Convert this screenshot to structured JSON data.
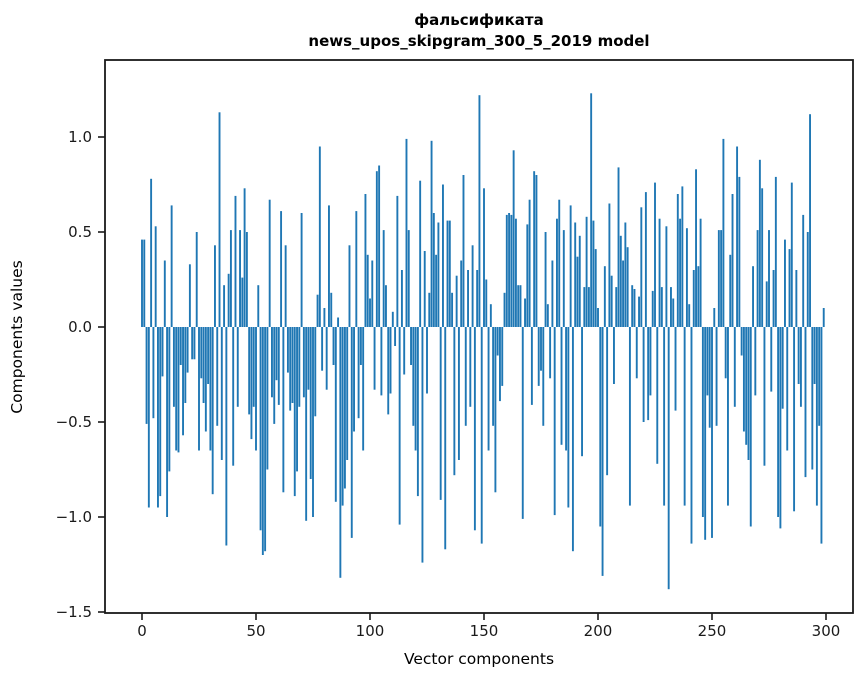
{
  "figure": {
    "title_line1": "фальсификата",
    "title_line2": "news_upos_skipgram_300_5_2019 model",
    "xlabel": "Vector components",
    "ylabel": "Components values"
  },
  "chart_data": {
    "type": "bar",
    "title": "фальсификата news_upos_skipgram_300_5_2019 model",
    "xlabel": "Vector components",
    "ylabel": "Components values",
    "bar_color": "#1f77b4",
    "spine_color": "#1a1a1a",
    "xlim": [
      -15,
      315
    ],
    "ylim": [
      -1.5,
      1.405
    ],
    "grid": false,
    "legend": null,
    "x_ticks": [
      {
        "label": "0",
        "value": 0
      },
      {
        "label": "50",
        "value": 50
      },
      {
        "label": "100",
        "value": 100
      },
      {
        "label": "150",
        "value": 150
      },
      {
        "label": "200",
        "value": 200
      },
      {
        "label": "250",
        "value": 250
      },
      {
        "label": "300",
        "value": 300
      }
    ],
    "y_ticks": [
      {
        "label": "1.0",
        "value": 1.0
      },
      {
        "label": "0.5",
        "value": 0.5
      },
      {
        "label": "0.0",
        "value": 0.0
      },
      {
        "label": "−0.5",
        "value": -0.5
      },
      {
        "label": "−1.0",
        "value": -1.0
      },
      {
        "label": "−1.5",
        "value": -1.5
      }
    ],
    "x": "0..299 (vector component index)",
    "values": [
      0.46,
      0.46,
      -0.51,
      -0.95,
      0.78,
      -0.48,
      0.53,
      -0.95,
      -0.89,
      -0.26,
      0.35,
      -1.0,
      -0.76,
      0.64,
      -0.42,
      -0.65,
      -0.66,
      -0.2,
      -0.57,
      -0.4,
      -0.24,
      0.33,
      -0.17,
      -0.17,
      0.5,
      -0.65,
      -0.27,
      -0.4,
      -0.55,
      -0.3,
      -0.65,
      -0.88,
      0.43,
      -0.52,
      1.13,
      -0.7,
      0.22,
      -1.15,
      0.28,
      0.51,
      -0.73,
      0.69,
      -0.42,
      0.51,
      0.26,
      0.73,
      0.5,
      -0.46,
      -0.59,
      -0.42,
      -0.65,
      0.22,
      -1.07,
      -1.2,
      -1.18,
      -0.75,
      0.67,
      -0.37,
      -0.51,
      -0.28,
      -0.41,
      0.61,
      -0.87,
      0.43,
      -0.24,
      -0.44,
      -0.4,
      -0.89,
      -0.76,
      -0.42,
      0.6,
      -0.37,
      -1.02,
      -0.33,
      -0.8,
      -1.0,
      -0.47,
      0.17,
      0.95,
      -0.23,
      0.1,
      -0.33,
      0.64,
      0.18,
      -0.2,
      -0.92,
      0.05,
      -1.32,
      -0.94,
      -0.85,
      -0.7,
      0.43,
      -1.11,
      -0.55,
      0.61,
      -0.48,
      -0.2,
      -0.65,
      0.7,
      0.38,
      0.15,
      0.35,
      -0.33,
      0.82,
      0.85,
      -0.36,
      0.51,
      0.22,
      -0.46,
      -0.35,
      0.08,
      -0.1,
      0.69,
      -1.04,
      0.3,
      -0.25,
      0.99,
      0.51,
      -0.2,
      -0.52,
      -0.65,
      -0.89,
      0.77,
      -1.24,
      0.4,
      -0.35,
      0.18,
      0.98,
      0.6,
      0.38,
      0.55,
      -0.91,
      0.75,
      -1.17,
      0.56,
      0.56,
      0.18,
      -0.78,
      0.27,
      -0.7,
      0.35,
      0.8,
      -0.52,
      0.3,
      -0.42,
      0.43,
      -1.07,
      0.3,
      1.22,
      -1.14,
      0.73,
      0.25,
      -0.65,
      0.12,
      -0.52,
      -0.87,
      -0.15,
      -0.39,
      -0.31,
      0.18,
      0.59,
      0.6,
      0.59,
      0.93,
      0.57,
      0.22,
      0.22,
      -1.01,
      0.15,
      0.54,
      0.67,
      -0.41,
      0.82,
      0.8,
      -0.31,
      -0.23,
      -0.52,
      0.5,
      0.12,
      -0.27,
      0.35,
      -0.99,
      0.57,
      0.67,
      -0.62,
      0.51,
      -0.65,
      -0.95,
      0.64,
      -1.18,
      0.55,
      0.37,
      0.48,
      -0.68,
      0.21,
      0.58,
      0.21,
      1.23,
      0.56,
      0.41,
      0.1,
      -1.05,
      -1.31,
      0.32,
      -0.78,
      0.65,
      0.27,
      -0.3,
      0.21,
      0.84,
      0.48,
      0.35,
      0.55,
      0.42,
      -0.94,
      0.22,
      0.2,
      -0.27,
      0.16,
      0.63,
      -0.5,
      0.71,
      -0.49,
      -0.36,
      0.19,
      0.76,
      -0.72,
      0.57,
      0.21,
      -0.94,
      0.53,
      -1.38,
      0.21,
      0.15,
      -0.44,
      0.7,
      0.57,
      0.74,
      -0.94,
      0.52,
      0.12,
      -1.14,
      0.3,
      0.83,
      0.32,
      0.57,
      -1.0,
      -1.12,
      -0.36,
      -0.53,
      -1.11,
      0.1,
      -0.52,
      0.51,
      0.51,
      0.99,
      -0.27,
      -0.94,
      0.38,
      0.7,
      -0.42,
      0.95,
      0.79,
      -0.15,
      -0.55,
      -0.62,
      -0.7,
      -1.05,
      0.32,
      -0.36,
      0.51,
      0.88,
      0.73,
      -0.73,
      0.24,
      0.51,
      -0.34,
      0.3,
      0.79,
      -1.0,
      -1.06,
      -0.43,
      0.46,
      -0.65,
      0.41,
      0.76,
      -0.97,
      0.3,
      -0.3,
      -0.42,
      0.59,
      -0.79,
      0.5,
      1.12,
      -0.75,
      -0.3,
      -0.94,
      -0.52,
      -1.14,
      0.1
    ]
  }
}
